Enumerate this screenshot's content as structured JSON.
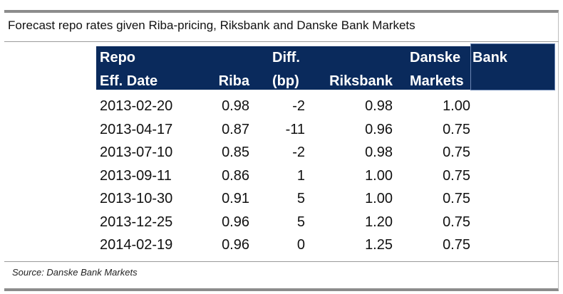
{
  "title": "Forecast repo rates given Riba-pricing, Riksbank and Danske Bank Markets",
  "headers": {
    "date_line1": "Repo",
    "date_line2": "Eff. Date",
    "riba": "Riba",
    "diff_line1": "Diff.",
    "diff_line2": "(bp)",
    "riksbank": "Riksbank",
    "danske_line1": "Danske",
    "danske_line2": "Markets",
    "bank": "Bank"
  },
  "rows": [
    {
      "date": "2013-02-20",
      "riba": "0.98",
      "diff": "-2",
      "riksbank": "0.98",
      "danske": "1.00"
    },
    {
      "date": "2013-04-17",
      "riba": "0.87",
      "diff": "-11",
      "riksbank": "0.96",
      "danske": "0.75"
    },
    {
      "date": "2013-07-10",
      "riba": "0.85",
      "diff": "-2",
      "riksbank": "0.98",
      "danske": "0.75"
    },
    {
      "date": "2013-09-11",
      "riba": "0.86",
      "diff": "1",
      "riksbank": "1.00",
      "danske": "0.75"
    },
    {
      "date": "2013-10-30",
      "riba": "0.91",
      "diff": "5",
      "riksbank": "1.00",
      "danske": "0.75"
    },
    {
      "date": "2013-12-25",
      "riba": "0.96",
      "diff": "5",
      "riksbank": "1.20",
      "danske": "0.75"
    },
    {
      "date": "2014-02-19",
      "riba": "0.96",
      "diff": "0",
      "riksbank": "1.25",
      "danske": "0.75"
    }
  ],
  "source": "Source: Danske Bank Markets",
  "colors": {
    "header_bg": "#0a2a5c",
    "header_text": "#ffffff"
  }
}
